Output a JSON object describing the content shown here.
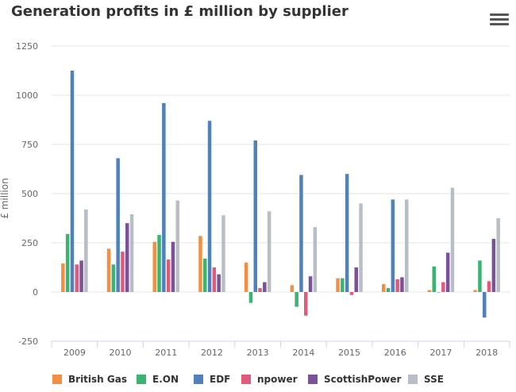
{
  "title": "Generation profits in £ million by supplier",
  "menu_icon": "hamburger-menu-icon",
  "chart_data": {
    "type": "bar",
    "title": "Generation profits in £ million by supplier",
    "xlabel": "",
    "ylabel": "£ million",
    "ylim": [
      -250,
      1250
    ],
    "yticks": [
      -250,
      0,
      250,
      500,
      750,
      1000,
      1250
    ],
    "grid": true,
    "legend_position": "bottom",
    "categories": [
      "2009",
      "2010",
      "2011",
      "2012",
      "2013",
      "2014",
      "2015",
      "2016",
      "2017",
      "2018"
    ],
    "series": [
      {
        "name": "British Gas",
        "color": "#f28f43",
        "values": [
          145,
          220,
          255,
          285,
          150,
          35,
          70,
          40,
          10,
          10
        ]
      },
      {
        "name": "E.ON",
        "color": "#3cb371",
        "values": [
          295,
          140,
          290,
          170,
          -55,
          -75,
          70,
          20,
          130,
          160
        ]
      },
      {
        "name": "EDF",
        "color": "#4f81bd",
        "values": [
          1125,
          680,
          960,
          870,
          770,
          595,
          600,
          470,
          0,
          -130
        ]
      },
      {
        "name": "npower",
        "color": "#e05a7a",
        "values": [
          140,
          205,
          165,
          125,
          20,
          -120,
          -15,
          65,
          50,
          55
        ]
      },
      {
        "name": "ScottishPower",
        "color": "#7a5299",
        "values": [
          160,
          350,
          255,
          90,
          50,
          80,
          125,
          75,
          200,
          270
        ]
      },
      {
        "name": "SSE",
        "color": "#b8bec6",
        "values": [
          420,
          395,
          465,
          390,
          410,
          330,
          450,
          470,
          530,
          375
        ]
      }
    ]
  }
}
